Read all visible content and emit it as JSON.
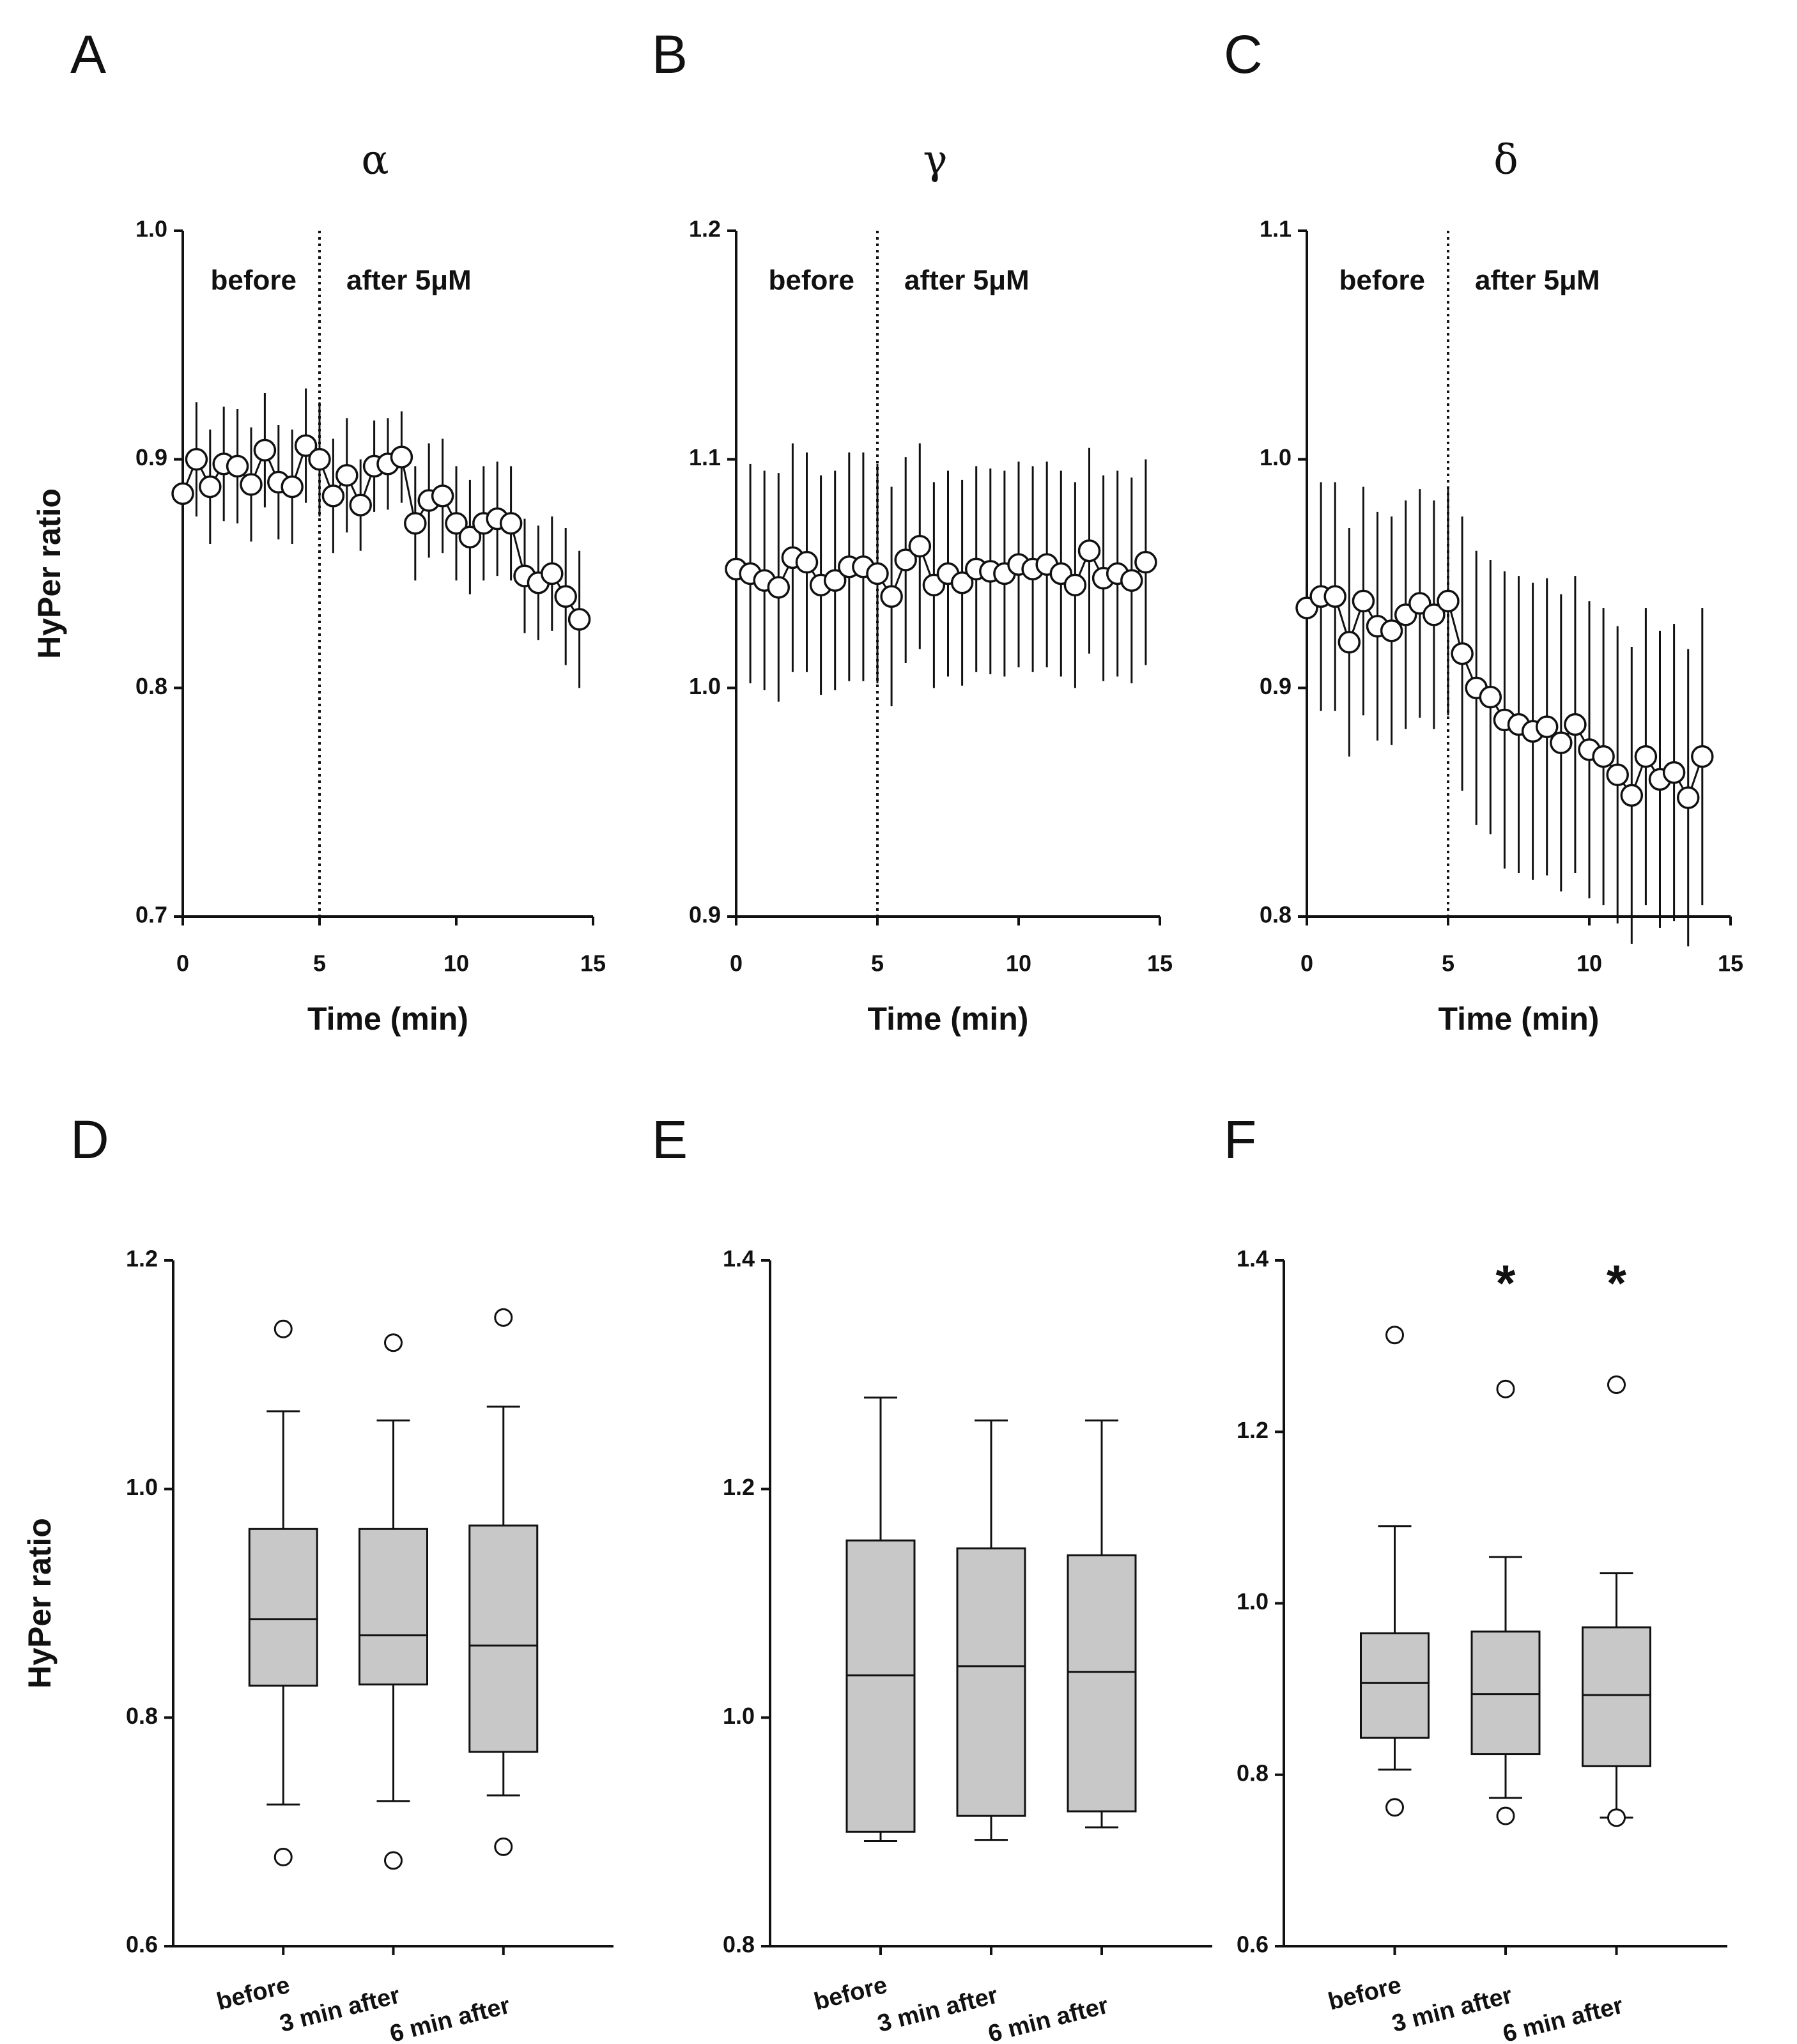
{
  "chart_data": [
    {
      "type": "line",
      "panel": "A",
      "title": "α",
      "ylabel": "HyPer ratio",
      "xlabel": "Time (min)",
      "annotations": [
        "before",
        "after 5μM"
      ],
      "vline": 5,
      "xlim": [
        0,
        15
      ],
      "xticks": [
        0,
        5,
        10,
        15
      ],
      "ylim": [
        0.7,
        1.0
      ],
      "yticks": [
        0.7,
        0.8,
        0.9,
        {
          "value": 1.0,
          "label": "1.0"
        }
      ],
      "x": [
        0,
        0.5,
        1,
        1.5,
        2,
        2.5,
        3,
        3.5,
        4,
        4.5,
        5,
        5.5,
        6,
        6.5,
        7,
        7.5,
        8,
        8.5,
        9,
        9.5,
        10,
        10.5,
        11,
        11.5,
        12,
        12.5,
        13,
        13.5,
        14,
        14.5
      ],
      "values": [
        0.885,
        0.9,
        0.888,
        0.898,
        0.897,
        0.889,
        0.904,
        0.89,
        0.888,
        0.906,
        0.9,
        0.884,
        0.893,
        0.88,
        0.897,
        0.898,
        0.901,
        0.872,
        0.882,
        0.884,
        0.872,
        0.866,
        0.872,
        0.874,
        0.872,
        0.849,
        0.846,
        0.85,
        0.84,
        0.83
      ],
      "errors": [
        0.025,
        0.025,
        0.025,
        0.025,
        0.025,
        0.025,
        0.025,
        0.025,
        0.025,
        0.025,
        0.025,
        0.025,
        0.025,
        0.02,
        0.02,
        0.02,
        0.02,
        0.025,
        0.025,
        0.025,
        0.025,
        0.025,
        0.025,
        0.025,
        0.025,
        0.025,
        0.025,
        0.025,
        0.03,
        0.03
      ]
    },
    {
      "type": "line",
      "panel": "B",
      "title": "γ",
      "xlabel": "Time (min)",
      "annotations": [
        "before",
        "after 5μM"
      ],
      "vline": 5,
      "xlim": [
        0,
        15
      ],
      "xticks": [
        0,
        5,
        10,
        15
      ],
      "ylim": [
        0.9,
        1.2
      ],
      "yticks": [
        0.9,
        {
          "value": 1.0,
          "label": "1.0"
        },
        1.1,
        1.2
      ],
      "x": [
        0,
        0.5,
        1,
        1.5,
        2,
        2.5,
        3,
        3.5,
        4,
        4.5,
        5,
        5.5,
        6,
        6.5,
        7,
        7.5,
        8,
        8.5,
        9,
        9.5,
        10,
        10.5,
        11,
        11.5,
        12,
        12.5,
        13,
        13.5,
        14,
        14.5
      ],
      "values": [
        1.052,
        1.05,
        1.047,
        1.044,
        1.057,
        1.055,
        1.045,
        1.047,
        1.053,
        1.053,
        1.05,
        1.04,
        1.056,
        1.062,
        1.045,
        1.05,
        1.046,
        1.052,
        1.051,
        1.05,
        1.054,
        1.052,
        1.054,
        1.05,
        1.045,
        1.06,
        1.048,
        1.05,
        1.047,
        1.055
      ],
      "errors": [
        0.048,
        0.048,
        0.048,
        0.05,
        0.05,
        0.048,
        0.048,
        0.048,
        0.05,
        0.05,
        0.048,
        0.048,
        0.045,
        0.045,
        0.045,
        0.045,
        0.045,
        0.045,
        0.045,
        0.045,
        0.045,
        0.045,
        0.045,
        0.045,
        0.045,
        0.045,
        0.045,
        0.045,
        0.045,
        0.045
      ]
    },
    {
      "type": "line",
      "panel": "C",
      "title": "δ",
      "xlabel": "Time (min)",
      "annotations": [
        "before",
        "after 5μM"
      ],
      "vline": 5,
      "xlim": [
        0,
        15
      ],
      "xticks": [
        0,
        5,
        10,
        15
      ],
      "ylim": [
        0.8,
        1.1
      ],
      "yticks": [
        0.8,
        0.9,
        {
          "value": 1.0,
          "label": "1.0"
        },
        1.1
      ],
      "x": [
        0,
        0.5,
        1,
        1.5,
        2,
        2.5,
        3,
        3.5,
        4,
        4.5,
        5,
        5.5,
        6,
        6.5,
        7,
        7.5,
        8,
        8.5,
        9,
        9.5,
        10,
        10.5,
        11,
        11.5,
        12,
        12.5,
        13,
        13.5,
        14
      ],
      "values": [
        0.935,
        0.94,
        0.94,
        0.92,
        0.938,
        0.927,
        0.925,
        0.932,
        0.937,
        0.932,
        0.938,
        0.915,
        0.9,
        0.896,
        0.886,
        0.884,
        0.881,
        0.883,
        0.876,
        0.884,
        0.873,
        0.87,
        0.862,
        0.853,
        0.87,
        0.86,
        0.863,
        0.852,
        0.87
      ],
      "errors": [
        0.05,
        0.05,
        0.05,
        0.05,
        0.05,
        0.05,
        0.05,
        0.05,
        0.05,
        0.05,
        0.05,
        0.06,
        0.06,
        0.06,
        0.065,
        0.065,
        0.065,
        0.065,
        0.065,
        0.065,
        0.065,
        0.065,
        0.065,
        0.065,
        0.065,
        0.065,
        0.065,
        0.065,
        0.065
      ]
    },
    {
      "type": "box",
      "panel": "D",
      "ylabel": "HyPer ratio",
      "categories": [
        "before",
        "3 min after",
        "6 min after"
      ],
      "ylim": [
        0.6,
        1.2
      ],
      "yticks": [
        0.6,
        0.8,
        {
          "value": 1.0,
          "label": "1.0"
        },
        1.2
      ],
      "boxes": [
        {
          "whislo": 0.724,
          "q1": 0.828,
          "med": 0.886,
          "q3": 0.965,
          "whishi": 1.068,
          "fliers": [
            1.14,
            0.678
          ]
        },
        {
          "whislo": 0.727,
          "q1": 0.829,
          "med": 0.872,
          "q3": 0.965,
          "whishi": 1.06,
          "fliers": [
            1.128,
            0.675
          ]
        },
        {
          "whislo": 0.732,
          "q1": 0.77,
          "med": 0.863,
          "q3": 0.968,
          "whishi": 1.072,
          "fliers": [
            1.15,
            0.687
          ]
        }
      ]
    },
    {
      "type": "box",
      "panel": "E",
      "categories": [
        "before",
        "3 min after",
        "6 min after"
      ],
      "ylim": [
        0.8,
        1.4
      ],
      "yticks": [
        0.8,
        {
          "value": 1.0,
          "label": "1.0"
        },
        1.2,
        1.4
      ],
      "boxes": [
        {
          "whislo": 0.892,
          "q1": 0.9,
          "med": 1.037,
          "q3": 1.155,
          "whishi": 1.28,
          "fliers": []
        },
        {
          "whislo": 0.893,
          "q1": 0.914,
          "med": 1.045,
          "q3": 1.148,
          "whishi": 1.26,
          "fliers": []
        },
        {
          "whislo": 0.904,
          "q1": 0.918,
          "med": 1.04,
          "q3": 1.142,
          "whishi": 1.26,
          "fliers": []
        }
      ]
    },
    {
      "type": "box",
      "panel": "F",
      "categories": [
        "before",
        "3 min after",
        "6 min after"
      ],
      "significance": [
        null,
        "*",
        "*"
      ],
      "ylim": [
        0.6,
        1.4
      ],
      "yticks": [
        0.6,
        0.8,
        {
          "value": 1.0,
          "label": "1.0"
        },
        1.2,
        1.4
      ],
      "boxes": [
        {
          "whislo": 0.806,
          "q1": 0.843,
          "med": 0.907,
          "q3": 0.965,
          "whishi": 1.09,
          "fliers": [
            1.313,
            0.762
          ]
        },
        {
          "whislo": 0.773,
          "q1": 0.824,
          "med": 0.894,
          "q3": 0.967,
          "whishi": 1.054,
          "fliers": [
            1.25,
            0.752
          ]
        },
        {
          "whislo": 0.75,
          "q1": 0.81,
          "med": 0.893,
          "q3": 0.972,
          "whishi": 1.035,
          "fliers": [
            1.255,
            0.75
          ]
        }
      ]
    }
  ]
}
